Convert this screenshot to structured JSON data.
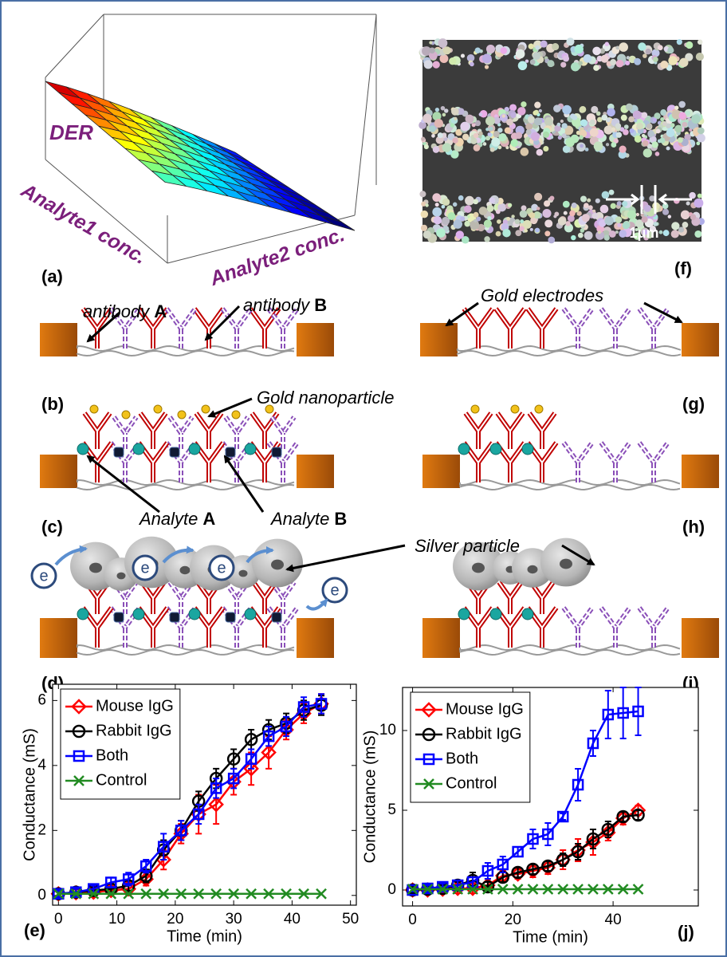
{
  "panel_labels": [
    "(a)",
    "(b)",
    "(c)",
    "(d)",
    "(e)",
    "(f)",
    "(g)",
    "(h)",
    "(i)",
    "(j)"
  ],
  "surface_plot": {
    "z_label": "DER",
    "x_label": "Analyte1 conc.",
    "y_label": "Analyte2 conc."
  },
  "micrograph": {
    "scale_bar": "1μm"
  },
  "annotations": {
    "antibody_a": {
      "text": "antibody",
      "letter": "A"
    },
    "antibody_b": {
      "text": "antibody",
      "letter": "B"
    },
    "gold_electrodes": "Gold electrodes",
    "gold_nanoparticle": "Gold nanoparticle",
    "analyte_a": {
      "text": "Analyte",
      "letter": "A"
    },
    "analyte_b": {
      "text": "Analyte",
      "letter": "B"
    },
    "silver_particle": "Silver particle",
    "electron": "e"
  },
  "chart_data": [
    {
      "type": "line",
      "xlabel": "Time (min)",
      "ylabel": "Conductance (mS)",
      "x": [
        0,
        3,
        6,
        9,
        12,
        15,
        18,
        21,
        24,
        27,
        30,
        33,
        36,
        39,
        42,
        45
      ],
      "xlim": [
        -1,
        51
      ],
      "ylim": [
        -0.3,
        6.5
      ],
      "xticks": [
        0,
        10,
        20,
        30,
        40,
        50
      ],
      "yticks": [
        0,
        2,
        4,
        6
      ],
      "legend": "upper left",
      "series": [
        {
          "name": "Mouse IgG",
          "color": "#ff0000",
          "marker": "diamond",
          "values": [
            0.05,
            0.08,
            0.1,
            0.15,
            0.2,
            0.5,
            1.1,
            1.9,
            2.5,
            2.8,
            3.5,
            3.9,
            4.4,
            5.1,
            5.6,
            5.9
          ],
          "errors": [
            0.1,
            0.1,
            0.15,
            0.15,
            0.2,
            0.2,
            0.3,
            0.3,
            0.6,
            0.6,
            0.4,
            0.5,
            0.5,
            0.3,
            0.3,
            0.3
          ]
        },
        {
          "name": "Rabbit IgG",
          "color": "#000000",
          "marker": "circle",
          "values": [
            0.05,
            0.1,
            0.15,
            0.2,
            0.3,
            0.6,
            1.4,
            2.0,
            2.9,
            3.6,
            4.2,
            4.8,
            5.1,
            5.3,
            5.7,
            5.85
          ],
          "errors": [
            0.1,
            0.1,
            0.1,
            0.15,
            0.15,
            0.2,
            0.3,
            0.3,
            0.3,
            0.3,
            0.3,
            0.3,
            0.3,
            0.3,
            0.3,
            0.3
          ]
        },
        {
          "name": "Both",
          "color": "#0000ff",
          "marker": "square",
          "values": [
            0.05,
            0.1,
            0.2,
            0.4,
            0.5,
            0.9,
            1.5,
            2.0,
            2.5,
            3.3,
            3.6,
            4.2,
            4.9,
            5.2,
            5.8,
            5.9
          ],
          "errors": [
            0.1,
            0.1,
            0.1,
            0.15,
            0.2,
            0.2,
            0.4,
            0.3,
            0.3,
            0.3,
            0.3,
            0.3,
            0.3,
            0.3,
            0.3,
            0.3
          ]
        },
        {
          "name": "Control",
          "color": "#228b22",
          "marker": "x",
          "values": [
            0.05,
            0.05,
            0.05,
            0.05,
            0.05,
            0.05,
            0.05,
            0.05,
            0.05,
            0.05,
            0.05,
            0.05,
            0.05,
            0.05,
            0.05,
            0.05
          ]
        }
      ]
    },
    {
      "type": "line",
      "xlabel": "Time (min)",
      "ylabel": "Conductance (mS)",
      "x": [
        0,
        3,
        6,
        9,
        12,
        15,
        18,
        21,
        24,
        27,
        30,
        33,
        36,
        39,
        42,
        45
      ],
      "xlim": [
        -2,
        57
      ],
      "ylim": [
        -1,
        12.7
      ],
      "xticks": [
        0,
        20,
        40
      ],
      "yticks": [
        0,
        5,
        10
      ],
      "legend": "upper left",
      "series": [
        {
          "name": "Mouse IgG",
          "color": "#ff0000",
          "marker": "diamond",
          "values": [
            0,
            0,
            0.05,
            0.1,
            0.1,
            0.3,
            0.9,
            1.0,
            1.2,
            1.4,
            1.9,
            2.5,
            3.0,
            3.6,
            4.5,
            5.0
          ],
          "errors": [
            0.2,
            0.2,
            0.2,
            0.3,
            0.3,
            0.4,
            0.3,
            0.3,
            0.4,
            0.4,
            0.6,
            0.7,
            0.8,
            0.5,
            0.4,
            0.3
          ]
        },
        {
          "name": "Rabbit IgG",
          "color": "#000000",
          "marker": "circle",
          "values": [
            0,
            0.05,
            0.1,
            0.3,
            0.6,
            0.2,
            0.8,
            1.1,
            1.3,
            1.5,
            1.9,
            2.4,
            3.2,
            3.8,
            4.6,
            4.7
          ],
          "errors": [
            0.2,
            0.2,
            0.2,
            0.2,
            0.5,
            0.3,
            0.3,
            0.3,
            0.3,
            0.3,
            0.4,
            0.5,
            0.6,
            0.5,
            0.3,
            0.3
          ]
        },
        {
          "name": "Both",
          "color": "#0000ff",
          "marker": "square",
          "values": [
            0,
            0.1,
            0.2,
            0.3,
            0.5,
            1.2,
            1.6,
            2.4,
            3.2,
            3.5,
            4.6,
            6.6,
            9.2,
            11.0,
            11.1,
            11.2
          ],
          "errors": [
            0.1,
            0.2,
            0.2,
            0.3,
            0.3,
            0.5,
            0.5,
            0.3,
            0.6,
            0.7,
            0.2,
            1.0,
            0.8,
            1.5,
            1.6,
            1.5
          ]
        },
        {
          "name": "Control",
          "color": "#228b22",
          "marker": "x",
          "values": [
            0.05,
            0.05,
            0.05,
            0.05,
            0.05,
            0.05,
            0.05,
            0.05,
            0.05,
            0.05,
            0.05,
            0.05,
            0.05,
            0.05,
            0.05,
            0.05
          ]
        }
      ]
    }
  ]
}
